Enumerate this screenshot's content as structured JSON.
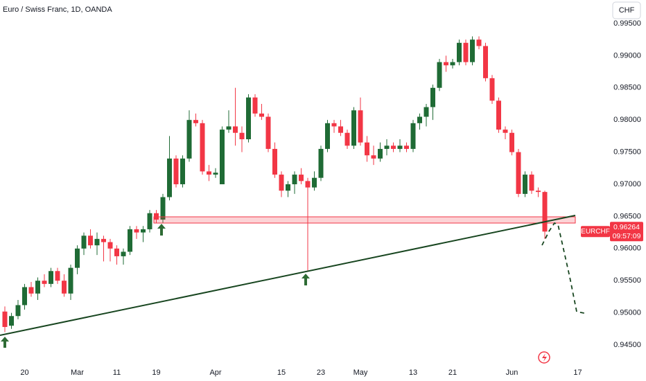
{
  "chart_data": {
    "type": "candlestick",
    "title": "Euro / Swiss Franc, 1D, OANDA",
    "currency": "CHF",
    "up_color": "#1f6b35",
    "down_color": "#f23645",
    "categories": [
      null,
      null,
      null,
      "20",
      null,
      null,
      null,
      null,
      null,
      null,
      null,
      "Mar",
      null,
      null,
      null,
      null,
      null,
      "11",
      null,
      null,
      null,
      null,
      null,
      "19",
      null,
      null,
      null,
      null,
      null,
      null,
      null,
      null,
      "Apr",
      null,
      null,
      null,
      null,
      null,
      null,
      null,
      null,
      null,
      "15",
      null,
      null,
      null,
      null,
      null,
      "23",
      null,
      null,
      null,
      null,
      null,
      "May",
      null,
      null,
      null,
      null,
      null,
      null,
      null,
      "13",
      null,
      null,
      null,
      null,
      null,
      "21",
      null,
      null,
      null,
      null,
      null,
      null,
      null,
      null,
      "Jun",
      null,
      null,
      null,
      null,
      null,
      null,
      null,
      null,
      null,
      "17"
    ],
    "open": [
      0.9502,
      0.948,
      0.9495,
      0.9512,
      0.954,
      0.953,
      0.955,
      0.9545,
      0.9565,
      0.955,
      0.953,
      0.957,
      0.96,
      0.962,
      0.9605,
      0.9615,
      0.961,
      0.96,
      0.9588,
      0.9595,
      0.963,
      0.9625,
      0.963,
      0.9655,
      0.9645,
      0.968,
      0.974,
      0.97,
      0.974,
      0.98,
      0.9795,
      0.972,
      0.9715,
      0.97,
      0.9785,
      0.979,
      0.978,
      0.977,
      0.9835,
      0.981,
      0.9805,
      0.9755,
      0.9715,
      0.969,
      0.97,
      0.9715,
      0.9705,
      0.9695,
      0.971,
      0.9755,
      0.9795,
      0.979,
      0.978,
      0.976,
      0.9815,
      0.9765,
      0.9745,
      0.974,
      0.9755,
      0.976,
      0.9755,
      0.976,
      0.9755,
      0.9795,
      0.9805,
      0.982,
      0.985,
      0.989,
      0.9885,
      0.989,
      0.992,
      0.989,
      0.9925,
      0.9915,
      0.9865,
      0.983,
      0.9785,
      0.978,
      0.975,
      0.9685,
      0.9715,
      0.969,
      0.9688,
      null,
      null,
      null,
      null,
      null
    ],
    "high": [
      0.951,
      0.95,
      0.952,
      0.9545,
      0.9548,
      0.9555,
      0.956,
      0.957,
      0.957,
      0.956,
      0.9575,
      0.9605,
      0.9625,
      0.963,
      0.9625,
      0.962,
      0.9615,
      0.9605,
      0.96,
      0.9635,
      0.9635,
      0.9635,
      0.966,
      0.966,
      0.9685,
      0.9775,
      0.9745,
      0.9745,
      0.9815,
      0.981,
      0.98,
      0.973,
      0.9725,
      0.979,
      0.9815,
      0.985,
      0.979,
      0.984,
      0.984,
      0.9825,
      0.981,
      0.9765,
      0.972,
      0.9705,
      0.972,
      0.9725,
      0.971,
      0.972,
      0.976,
      0.98,
      0.98,
      0.98,
      0.9785,
      0.982,
      0.9835,
      0.9775,
      0.976,
      0.9765,
      0.977,
      0.9765,
      0.977,
      0.9765,
      0.98,
      0.981,
      0.9825,
      0.9855,
      0.9895,
      0.99,
      0.9895,
      0.9925,
      0.9925,
      0.993,
      0.993,
      0.992,
      0.987,
      0.9835,
      0.979,
      0.9785,
      0.9755,
      0.972,
      0.972,
      0.9695,
      0.969,
      null,
      null,
      null,
      null,
      null
    ],
    "low": [
      0.947,
      0.9475,
      0.949,
      0.9505,
      0.9525,
      0.952,
      0.954,
      0.954,
      0.9545,
      0.9525,
      0.952,
      0.956,
      0.959,
      0.96,
      0.959,
      0.958,
      0.958,
      0.9575,
      0.9575,
      0.959,
      0.9615,
      0.961,
      0.9625,
      0.964,
      0.964,
      0.9675,
      0.9695,
      0.9695,
      0.9735,
      0.979,
      0.9715,
      0.9705,
      0.971,
      0.97,
      0.978,
      0.976,
      0.975,
      0.9765,
      0.9805,
      0.98,
      0.975,
      0.971,
      0.968,
      0.968,
      0.9685,
      0.97,
      0.9566,
      0.969,
      0.9705,
      0.975,
      0.978,
      0.9775,
      0.9755,
      0.9755,
      0.976,
      0.9735,
      0.973,
      0.9735,
      0.9745,
      0.975,
      0.975,
      0.975,
      0.975,
      0.9785,
      0.979,
      0.98,
      0.9845,
      0.9875,
      0.988,
      0.9885,
      0.9885,
      0.9885,
      0.991,
      0.986,
      0.9825,
      0.978,
      0.977,
      0.9745,
      0.968,
      0.968,
      0.9685,
      0.968,
      0.9615,
      null,
      null,
      null,
      null,
      null
    ],
    "close": [
      0.9478,
      0.9495,
      0.9512,
      0.954,
      0.953,
      0.955,
      0.9545,
      0.9565,
      0.955,
      0.953,
      0.957,
      0.96,
      0.962,
      0.9605,
      0.9615,
      0.961,
      0.96,
      0.9588,
      0.9595,
      0.963,
      0.9625,
      0.963,
      0.9655,
      0.9645,
      0.968,
      0.974,
      0.97,
      0.974,
      0.98,
      0.9795,
      0.972,
      0.9715,
      0.9718,
      0.9785,
      0.979,
      0.978,
      0.977,
      0.9835,
      0.981,
      0.9805,
      0.9755,
      0.9715,
      0.969,
      0.97,
      0.9715,
      0.9705,
      0.9695,
      0.971,
      0.9755,
      0.9795,
      0.979,
      0.978,
      0.976,
      0.9815,
      0.9765,
      0.9745,
      0.974,
      0.9755,
      0.976,
      0.9755,
      0.976,
      0.9755,
      0.9795,
      0.9805,
      0.982,
      0.985,
      0.989,
      0.9885,
      0.989,
      0.992,
      0.989,
      0.9925,
      0.9915,
      0.9865,
      0.983,
      0.9785,
      0.978,
      0.975,
      0.9685,
      0.9715,
      0.969,
      0.9688,
      0.96264,
      null,
      null,
      null,
      null,
      null
    ],
    "ylim": [
      0.94263,
      0.99866
    ],
    "yticks": [
      {
        "value": 0.945,
        "label": "0.94500"
      },
      {
        "value": 0.95,
        "label": "0.95000"
      },
      {
        "value": 0.955,
        "label": "0.95500"
      },
      {
        "value": 0.96,
        "label": "0.96000"
      },
      {
        "value": 0.965,
        "label": "0.96500"
      },
      {
        "value": 0.97,
        "label": "0.97000"
      },
      {
        "value": 0.975,
        "label": "0.97500"
      },
      {
        "value": 0.98,
        "label": "0.98000"
      },
      {
        "value": 0.985,
        "label": "0.98500"
      },
      {
        "value": 0.99,
        "label": "0.99000"
      },
      {
        "value": 0.995,
        "label": "0.99500"
      }
    ],
    "price_tag": {
      "symbol": "EURCHF",
      "price": "0.96264",
      "countdown": "09:57:09"
    }
  }
}
